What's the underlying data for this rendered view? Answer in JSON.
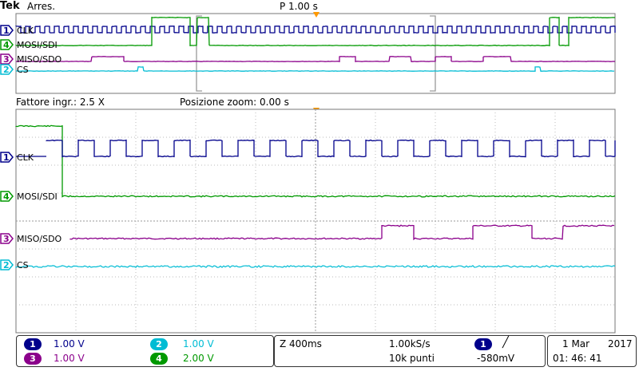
{
  "header": {
    "brand": "Tek",
    "status": "Arres.",
    "trigger_position": "P 1.00 s"
  },
  "zoom": {
    "factor": "Fattore ingr.: 2.5 X",
    "position": "Posizione zoom: 0.00 s"
  },
  "colors": {
    "ch1": "#00008b",
    "ch2": "#00bcd4",
    "ch3": "#8b008b",
    "ch4": "#009900",
    "marker": "#ff9900"
  },
  "channels": [
    {
      "number": "1",
      "label": "CLK"
    },
    {
      "number": "4",
      "label": "MOSI/SDI"
    },
    {
      "number": "3",
      "label": "MISO/SDO"
    },
    {
      "number": "2",
      "label": "CS"
    }
  ],
  "scales": {
    "ch1": "1.00 V",
    "ch2": "1.00 V",
    "ch3": "1.00 V",
    "ch4": "2.00 V"
  },
  "acquisition": {
    "zoom_time": "Z 400ms",
    "sample_rate": "1.00kS/s",
    "record_length": "10k punti"
  },
  "trigger": {
    "source": "1",
    "slope_icon": "rising-edge-icon",
    "level": "-580mV"
  },
  "datetime": {
    "date": "1 Mar",
    "year": "2017",
    "time": "01: 46: 41"
  }
}
